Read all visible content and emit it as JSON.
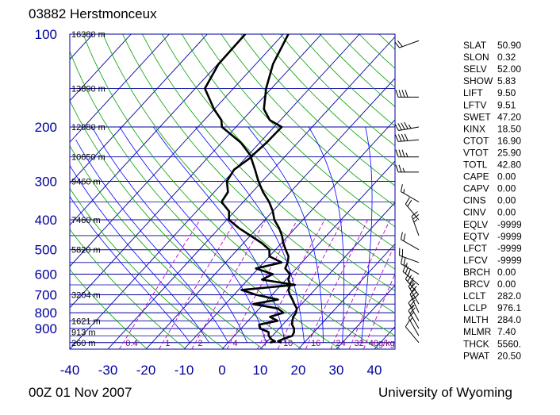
{
  "header": {
    "title": "03882  Herstmonceux"
  },
  "footer": {
    "time": "00Z 01 Nov 2007",
    "credit": "University of Wyoming"
  },
  "chart_data": {
    "type": "skew-t",
    "pressure_levels": [
      100,
      200,
      300,
      400,
      500,
      600,
      700,
      800,
      900
    ],
    "pressure_labels": [
      "100",
      "200",
      "300",
      "400",
      "500",
      "600",
      "700",
      "800",
      "900"
    ],
    "xticks": [
      -40,
      -30,
      -20,
      -10,
      0,
      10,
      20,
      30,
      40
    ],
    "xtick_labels": [
      "-40",
      "-30",
      "-20",
      "-10",
      "0",
      "10",
      "20",
      "30",
      "40"
    ],
    "height_labels": [
      {
        "p": 100,
        "text": "16380 m"
      },
      {
        "p": 150,
        "text": "13890 m"
      },
      {
        "p": 200,
        "text": "12080 m"
      },
      {
        "p": 250,
        "text": "10650 m"
      },
      {
        "p": 300,
        "text": "9460 m"
      },
      {
        "p": 400,
        "text": "7460 m"
      },
      {
        "p": 500,
        "text": "5820 m"
      },
      {
        "p": 700,
        "text": "3204 m"
      },
      {
        "p": 850,
        "text": "1621 m"
      },
      {
        "p": 925,
        "text": "913 m"
      },
      {
        "p": 1000,
        "text": "260 m"
      }
    ],
    "mixing_ratio_labels": [
      "0.4",
      "1",
      "2",
      "4",
      "7",
      "10",
      "16",
      "24",
      "32",
      "40g/kg"
    ],
    "mixing_ratio_values": [
      0.4,
      1,
      2,
      4,
      7,
      10,
      16,
      24,
      32,
      40
    ],
    "temperature_profile": {
      "pressure": [
        1000,
        990,
        975,
        950,
        925,
        900,
        875,
        850,
        825,
        800,
        775,
        750,
        725,
        700,
        675,
        650,
        625,
        600,
        575,
        550,
        525,
        500,
        475,
        450,
        425,
        400,
        375,
        350,
        325,
        300,
        275,
        250,
        225,
        200,
        190,
        175,
        150,
        125,
        100
      ],
      "temperature": [
        14.0,
        12.8,
        13.5,
        15.2,
        14.8,
        13.9,
        12.5,
        11.6,
        10.9,
        10.6,
        9.8,
        8.1,
        6.5,
        4.7,
        3.1,
        2.4,
        0.6,
        -0.3,
        -2.9,
        -3.7,
        -5.0,
        -7.3,
        -9.6,
        -11.7,
        -14.3,
        -17.5,
        -20.0,
        -23.2,
        -27.2,
        -31.0,
        -34.7,
        -38.9,
        -38.2,
        -38.0,
        -42.8,
        -47.0,
        -51.4,
        -55.5,
        -58.7
      ]
    },
    "dewpoint_profile": {
      "pressure": [
        1000,
        990,
        975,
        950,
        925,
        900,
        875,
        850,
        825,
        800,
        775,
        750,
        725,
        700,
        675,
        650,
        625,
        600,
        575,
        550,
        525,
        500,
        475,
        450,
        425,
        400,
        375,
        350,
        325,
        300,
        275,
        250,
        225,
        200,
        190,
        175,
        150,
        125,
        100
      ],
      "dewpoint": [
        11.0,
        12.0,
        10.5,
        9.0,
        8.1,
        5.0,
        3.8,
        7.7,
        4.8,
        7.3,
        4.8,
        -2.7,
        2.7,
        -4.2,
        -9.2,
        3.6,
        -6.3,
        -4.8,
        -10.6,
        -5.3,
        -10.0,
        -11.6,
        -15.3,
        -20.0,
        -24.9,
        -29.4,
        -31.5,
        -35.7,
        -36.4,
        -39.3,
        -40.2,
        -38.7,
        -44.9,
        -53.7,
        -55.5,
        -60.1,
        -67.5,
        -69.8,
        -70.0
      ]
    },
    "indices": [
      {
        "name": "SLAT",
        "value": "50.90"
      },
      {
        "name": "SLON",
        "value": "0.32"
      },
      {
        "name": "SELV",
        "value": "52.00"
      },
      {
        "name": "SHOW",
        "value": "5.83"
      },
      {
        "name": "LIFT",
        "value": "9.50"
      },
      {
        "name": "LFTV",
        "value": "9.51"
      },
      {
        "name": "SWET",
        "value": "47.20"
      },
      {
        "name": "KINX",
        "value": "18.50"
      },
      {
        "name": "CTOT",
        "value": "16.90"
      },
      {
        "name": "VTOT",
        "value": "25.90"
      },
      {
        "name": "TOTL",
        "value": "42.80"
      },
      {
        "name": "CAPE",
        "value": "0.00"
      },
      {
        "name": "CAPV",
        "value": "0.00"
      },
      {
        "name": "CINS",
        "value": "0.00"
      },
      {
        "name": "CINV",
        "value": "0.00"
      },
      {
        "name": "EQLV",
        "value": "-9999"
      },
      {
        "name": "EQTV",
        "value": "-9999"
      },
      {
        "name": "LFCT",
        "value": "-9999"
      },
      {
        "name": "LFCV",
        "value": "-9999"
      },
      {
        "name": "BRCH",
        "value": "0.00"
      },
      {
        "name": "BRCV",
        "value": "0.00"
      },
      {
        "name": "LCLT",
        "value": "282.0"
      },
      {
        "name": "LCLP",
        "value": "976.1"
      },
      {
        "name": "MLTH",
        "value": "284.0"
      },
      {
        "name": "MLMR",
        "value": "7.40"
      },
      {
        "name": "THCK",
        "value": "5560."
      },
      {
        "name": "PWAT",
        "value": "20.50"
      }
    ],
    "wind_barbs": [
      {
        "p": 105,
        "dir": 250,
        "kt": 20
      },
      {
        "p": 160,
        "dir": 270,
        "kt": 40
      },
      {
        "p": 200,
        "dir": 260,
        "kt": 45
      },
      {
        "p": 220,
        "dir": 265,
        "kt": 40
      },
      {
        "p": 250,
        "dir": 270,
        "kt": 35
      },
      {
        "p": 280,
        "dir": 270,
        "kt": 25
      },
      {
        "p": 350,
        "dir": 300,
        "kt": 15
      },
      {
        "p": 400,
        "dir": 320,
        "kt": 20
      },
      {
        "p": 450,
        "dir": 340,
        "kt": 25
      },
      {
        "p": 500,
        "dir": 300,
        "kt": 20
      },
      {
        "p": 550,
        "dir": 290,
        "kt": 20
      },
      {
        "p": 600,
        "dir": 300,
        "kt": 25
      },
      {
        "p": 650,
        "dir": 310,
        "kt": 30
      },
      {
        "p": 700,
        "dir": 320,
        "kt": 35
      },
      {
        "p": 750,
        "dir": 330,
        "kt": 30
      },
      {
        "p": 800,
        "dir": 335,
        "kt": 30
      },
      {
        "p": 850,
        "dir": 330,
        "kt": 25
      },
      {
        "p": 900,
        "dir": 330,
        "kt": 20
      },
      {
        "p": 950,
        "dir": 330,
        "kt": 15
      },
      {
        "p": 1000,
        "dir": 320,
        "kt": 10
      }
    ],
    "colors": {
      "isobar": "#0000a0",
      "isotherm": "#0000a0",
      "dry_adiabat": "#00a000",
      "moist_adiabat": "#0000ff",
      "mixing_ratio": "#c000c0",
      "profile": "#000000"
    }
  }
}
